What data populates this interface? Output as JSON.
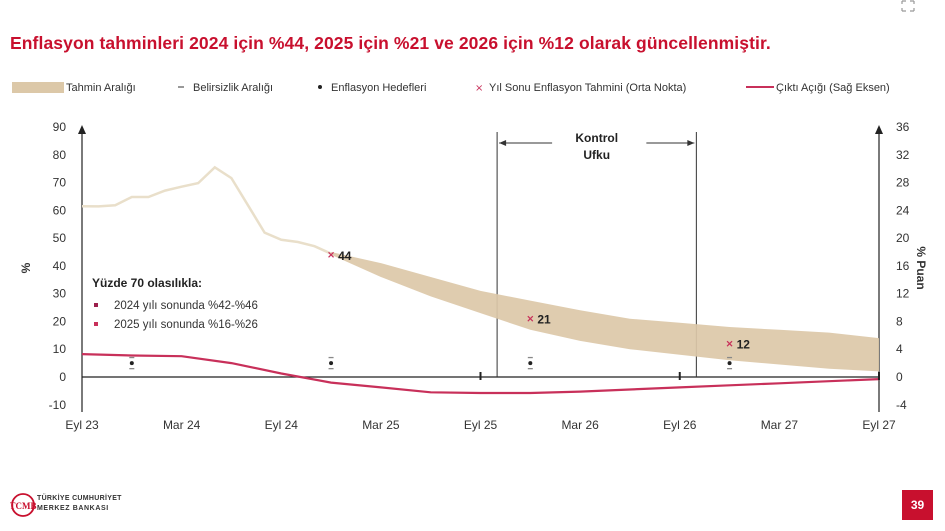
{
  "title": "Enflasyon tahminleri 2024 için %44, 2025 için %21 ve 2026 için %12 olarak güncellenmiştir.",
  "page_number": "39",
  "logo": {
    "line1": "TÜRKİYE CUMHURİYET",
    "line2": "MERKEZ BANKASI",
    "mark": "TCMB"
  },
  "colors": {
    "title": "#c8102e",
    "band": "#dcc8a8",
    "history": "#eae0cc",
    "output_gap": "#c8305a",
    "page_badge": "#c8102e"
  },
  "chart_data": {
    "type": "line",
    "title": "",
    "ylabel_left": "%",
    "ylabel_right": "% Puan",
    "ylim_left": [
      -10,
      90
    ],
    "ylim_right": [
      -4,
      36
    ],
    "yticks_left": [
      "90",
      "80",
      "70",
      "60",
      "50",
      "40",
      "30",
      "20",
      "10",
      "0",
      "-10"
    ],
    "yticks_right": [
      "36",
      "32",
      "28",
      "24",
      "20",
      "16",
      "12",
      "8",
      "4",
      "0",
      "-4"
    ],
    "x_ticks": [
      "Eyl 23",
      "Mar 24",
      "Eyl 24",
      "Mar 25",
      "Eyl 25",
      "Mar 26",
      "Eyl 26",
      "Mar 27",
      "Eyl 27"
    ],
    "x_tick_index": [
      0,
      6,
      12,
      18,
      24,
      30,
      36,
      42,
      48
    ],
    "legend": [
      {
        "label": "Tahmin Aralığı",
        "symbol": "band"
      },
      {
        "label": "Belirsizlik Aralığı",
        "symbol": "dash"
      },
      {
        "label": "Enflasyon Hedefleri",
        "symbol": "dot"
      },
      {
        "label": "Yıl Sonu Enflasyon Tahmini (Orta Nokta)",
        "symbol": "cross"
      },
      {
        "label": "Çıktı Açığı (Sağ Eksen)",
        "symbol": "line"
      }
    ],
    "control_horizon": {
      "label_line1": "Kontrol",
      "label_line2": "Ufku",
      "start_index": 25,
      "end_index": 37
    },
    "history_inflation": {
      "x": [
        0,
        1,
        2,
        3,
        4,
        5,
        6,
        7,
        8,
        9,
        10,
        11,
        12,
        13,
        14,
        15
      ],
      "values": [
        61.5,
        61.4,
        61.8,
        64.8,
        64.8,
        67.1,
        68.5,
        69.8,
        75.5,
        71.6,
        61.8,
        51.97,
        49.38,
        48.6,
        47.1,
        44.4
      ]
    },
    "forecast_band": {
      "x": [
        15,
        18,
        21,
        24,
        27,
        30,
        33,
        36,
        39,
        42,
        45,
        48
      ],
      "lower": [
        44.0,
        36.0,
        29.0,
        23.0,
        17.0,
        13.0,
        10.0,
        8.0,
        6.0,
        4.5,
        3.0,
        2.0
      ],
      "upper": [
        45.0,
        41.0,
        36.0,
        31.0,
        27.5,
        24.0,
        21.0,
        19.5,
        18.0,
        17.0,
        16.0,
        14.0
      ]
    },
    "year_end_forecasts": [
      {
        "x": 15,
        "value": 44,
        "label": "44"
      },
      {
        "x": 27,
        "value": 21,
        "label": "21"
      },
      {
        "x": 39,
        "value": 12,
        "label": "12"
      }
    ],
    "inflation_targets": [
      {
        "x": 3,
        "value": 5
      },
      {
        "x": 15,
        "value": 5
      },
      {
        "x": 27,
        "value": 5
      },
      {
        "x": 39,
        "value": 5
      }
    ],
    "uncertainty_range": [
      {
        "x": 3,
        "low": 3,
        "high": 7
      },
      {
        "x": 15,
        "low": 3,
        "high": 7
      },
      {
        "x": 27,
        "low": 3,
        "high": 7
      },
      {
        "x": 39,
        "low": 3,
        "high": 7
      }
    ],
    "target_marks_zero": [
      {
        "x": 24
      },
      {
        "x": 36
      },
      {
        "x": 48
      }
    ],
    "output_gap": {
      "axis": "right",
      "x": [
        0,
        3,
        6,
        9,
        12,
        15,
        18,
        21,
        24,
        27,
        30,
        33,
        36,
        39,
        42,
        45,
        48
      ],
      "values": [
        3.3,
        3.1,
        3.0,
        2.0,
        0.5,
        -0.8,
        -1.5,
        -2.2,
        -2.3,
        -2.3,
        -2.1,
        -1.8,
        -1.5,
        -1.2,
        -0.9,
        -0.6,
        -0.3
      ]
    },
    "annotation": {
      "heading": "Yüzde 70 olasılıkla:",
      "items": [
        "2024 yılı sonunda %42-%46",
        "2025 yılı sonunda %16-%26"
      ]
    }
  }
}
